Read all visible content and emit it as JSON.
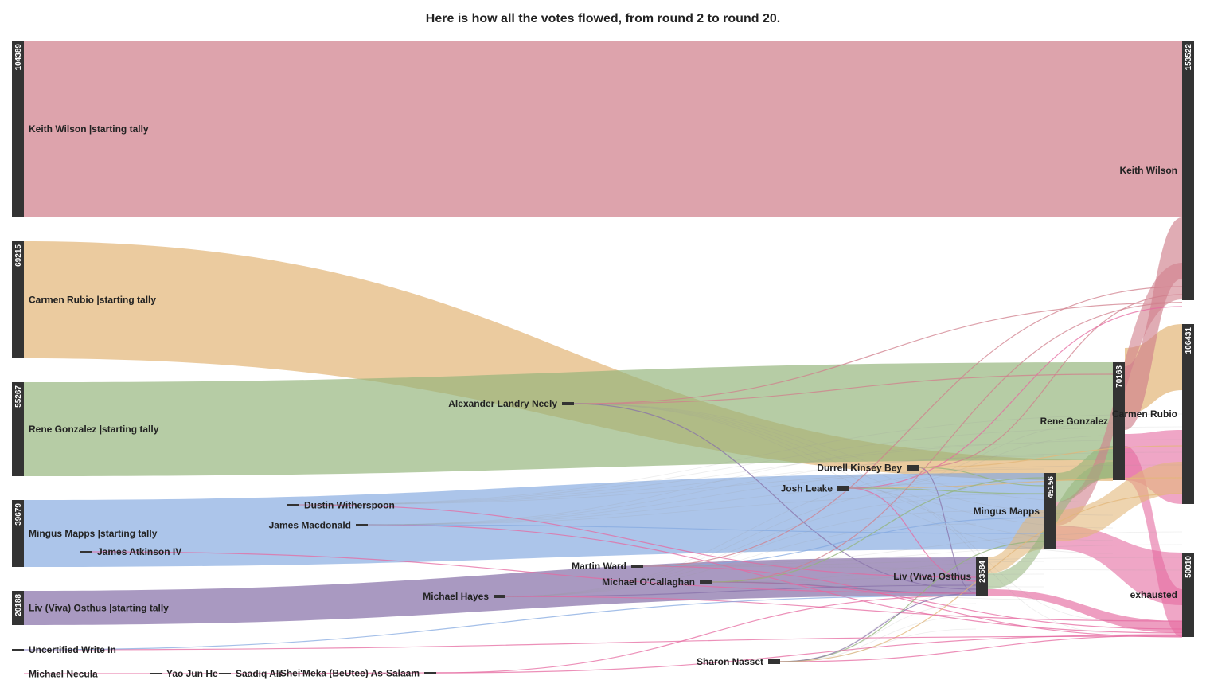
{
  "title": "Here is how all the votes flowed, from round 2 to round 20.",
  "colors": {
    "node": "#333333",
    "keith": "#d07f8c",
    "carmen": "#e3b77a",
    "rene": "#93b47a",
    "mingus": "#85a9e0",
    "liv": "#8871a9",
    "pink": "#e56aa0",
    "olive": "#8f9a47",
    "gray": "#999999"
  },
  "nodes": [
    {
      "id": "kw0",
      "label": "Keith Wilson |starting tally",
      "value": "104389"
    },
    {
      "id": "cr0",
      "label": "Carmen Rubio |starting tally",
      "value": "69215"
    },
    {
      "id": "rg0",
      "label": "Rene Gonzalez |starting tally",
      "value": "55267"
    },
    {
      "id": "mm0",
      "label": "Mingus Mapps |starting tally",
      "value": "39679"
    },
    {
      "id": "lo0",
      "label": "Liv (Viva) Osthus |starting tally",
      "value": "20188"
    },
    {
      "id": "uwi",
      "label": "Uncertified Write In",
      "value": ""
    },
    {
      "id": "mn",
      "label": "Michael Necula",
      "value": ""
    },
    {
      "id": "yjh",
      "label": "Yao Jun He",
      "value": ""
    },
    {
      "id": "sa",
      "label": "Saadiq Ali",
      "value": ""
    },
    {
      "id": "sba",
      "label": "Shei'Meka (BeUtee) As-Salaam",
      "value": ""
    },
    {
      "id": "jai",
      "label": "James Atkinson IV",
      "value": ""
    },
    {
      "id": "dw",
      "label": "Dustin Witherspoon",
      "value": ""
    },
    {
      "id": "jm",
      "label": "James Macdonald",
      "value": ""
    },
    {
      "id": "mh",
      "label": "Michael Hayes",
      "value": ""
    },
    {
      "id": "aln",
      "label": "Alexander Landry Neely",
      "value": ""
    },
    {
      "id": "mw",
      "label": "Martin Ward",
      "value": ""
    },
    {
      "id": "moc",
      "label": "Michael O'Callaghan",
      "value": ""
    },
    {
      "id": "sn",
      "label": "Sharon Nasset",
      "value": ""
    },
    {
      "id": "dkb",
      "label": "Durrell Kinsey Bey",
      "value": ""
    },
    {
      "id": "jl",
      "label": "Josh Leake",
      "value": ""
    },
    {
      "id": "lo1",
      "label": "Liv (Viva) Osthus",
      "value": "23584"
    },
    {
      "id": "mm1",
      "label": "Mingus Mapps",
      "value": "45156"
    },
    {
      "id": "rg1",
      "label": "Rene Gonzalez",
      "value": "70163"
    },
    {
      "id": "kw1",
      "label": "Keith Wilson",
      "value": "153522"
    },
    {
      "id": "cr1",
      "label": "Carmen Rubio",
      "value": "106431"
    },
    {
      "id": "ex",
      "label": "exhausted",
      "value": "50010"
    }
  ]
}
